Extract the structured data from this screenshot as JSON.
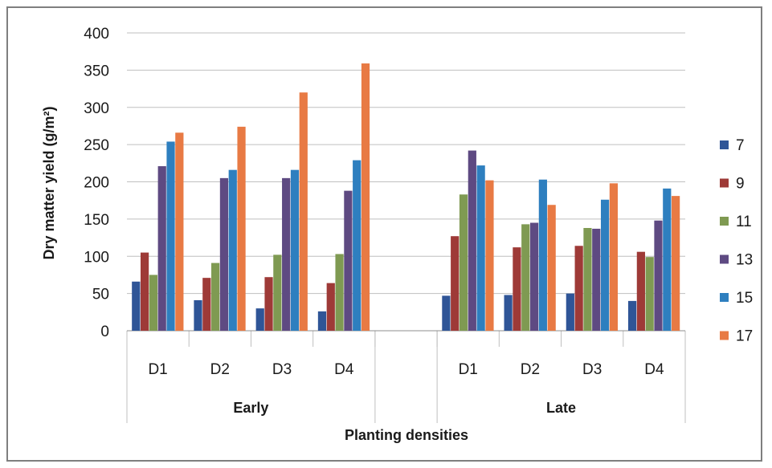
{
  "chart_data": {
    "type": "bar",
    "title": "",
    "xlabel": "Planting densities",
    "ylabel": "Dry matter yield (g/m²)",
    "ylim": [
      0,
      400
    ],
    "yticks": [
      "0",
      "50",
      "100",
      "150",
      "200",
      "250",
      "300",
      "350",
      "400"
    ],
    "grid": true,
    "legend_position": "right",
    "groups": [
      {
        "label": "Early",
        "categories": [
          "D1",
          "D2",
          "D3",
          "D4"
        ]
      },
      {
        "label": "",
        "categories": [
          ""
        ]
      },
      {
        "label": "Late",
        "categories": [
          "D1",
          "D2",
          "D3",
          "D4"
        ]
      }
    ],
    "series": [
      {
        "name": "7",
        "color": "#2f5597",
        "values": [
          66,
          41,
          30,
          26,
          null,
          47,
          48,
          50,
          40
        ]
      },
      {
        "name": "9",
        "color": "#9e3a37",
        "values": [
          105,
          71,
          72,
          64,
          null,
          127,
          112,
          114,
          106
        ]
      },
      {
        "name": "11",
        "color": "#7f9a52",
        "values": [
          75,
          91,
          102,
          103,
          null,
          183,
          143,
          138,
          99
        ]
      },
      {
        "name": "13",
        "color": "#5e4a82",
        "values": [
          221,
          205,
          205,
          188,
          null,
          242,
          145,
          137,
          148
        ]
      },
      {
        "name": "15",
        "color": "#2e7fbf",
        "values": [
          254,
          216,
          216,
          229,
          null,
          222,
          203,
          176,
          191
        ]
      },
      {
        "name": "17",
        "color": "#e87a44",
        "values": [
          266,
          274,
          320,
          359,
          null,
          202,
          169,
          198,
          181
        ]
      }
    ]
  }
}
